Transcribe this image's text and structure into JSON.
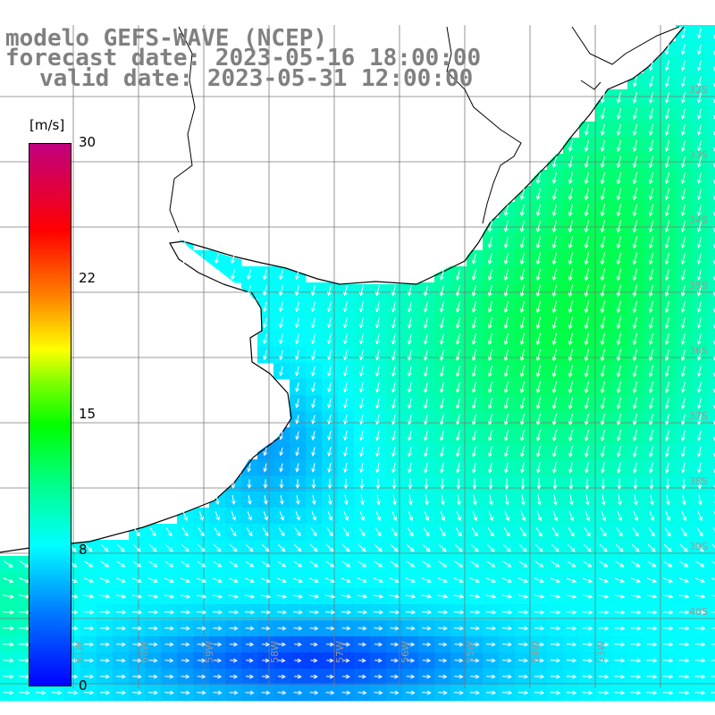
{
  "title": {
    "line1": "modelo GEFS-WAVE (NCEP)",
    "line2": "forecast date: 2023-05-16 18:00:00",
    "line3": "valid date: 2023-05-31 12:00:00"
  },
  "colorbar": {
    "unit": "[m/s]",
    "ticks": [
      "30",
      "22",
      "15",
      "8",
      "0"
    ],
    "min": 0,
    "max": 30
  },
  "lat_labels": [
    "32S",
    "33S",
    "34S",
    "35S",
    "36S",
    "37S",
    "38S",
    "39S",
    "40S"
  ],
  "lon_labels": [
    "61W",
    "60W",
    "59W",
    "58W",
    "57W",
    "56W",
    "55W",
    "54W",
    "53W"
  ],
  "colors": {
    "coast": "#000000",
    "grid": "#7a7a7a",
    "arrow": "#ffffff",
    "land": "#ffffff"
  }
}
